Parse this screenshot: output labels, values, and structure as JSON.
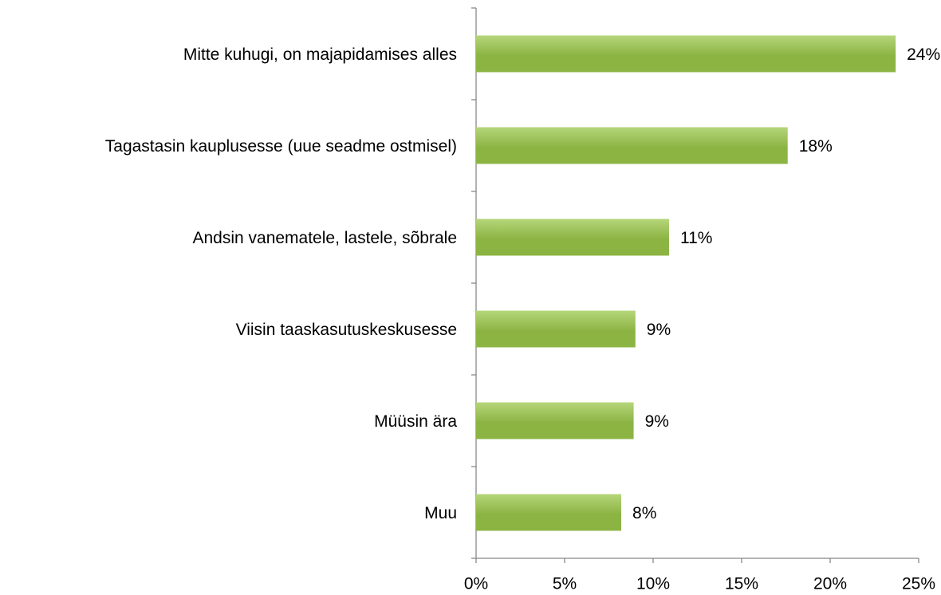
{
  "chart_data": {
    "type": "bar",
    "orientation": "horizontal",
    "categories": [
      "Mitte kuhugi, on majapidamises alles",
      "Tagastasin kauplusesse (uue seadme ostmisel)",
      "Andsin vanematele, lastele, sõbrale",
      "Viisin taaskasutuskeskusesse",
      "Müüsin ära",
      "Muu"
    ],
    "values": [
      23.7,
      17.6,
      10.9,
      9.0,
      8.9,
      8.2
    ],
    "value_labels": [
      "24%",
      "18%",
      "11%",
      "9%",
      "9%",
      "8%"
    ],
    "color": "#8cb443",
    "xlim": [
      0,
      25
    ],
    "xticks": [
      {
        "value": 0,
        "label": "0%"
      },
      {
        "value": 5,
        "label": "5%"
      },
      {
        "value": 10,
        "label": "10%"
      },
      {
        "value": 15,
        "label": "15%"
      },
      {
        "value": 20,
        "label": "20%"
      },
      {
        "value": 25,
        "label": "25%"
      }
    ],
    "grid": false
  }
}
